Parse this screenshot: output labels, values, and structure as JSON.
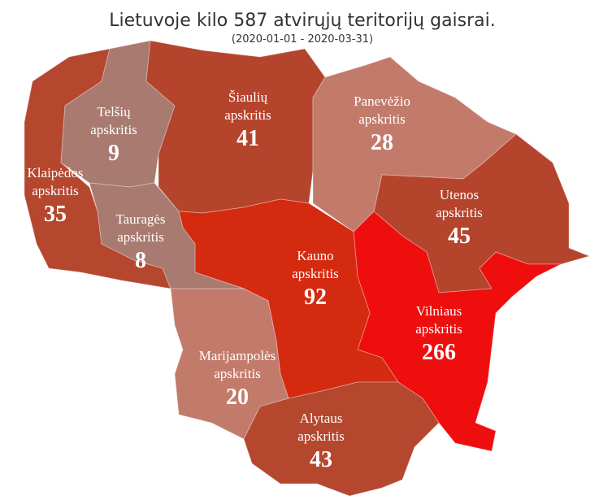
{
  "title": "Lietuvoje kilo 587 atvirųjų teritorijų gaisrai.",
  "subtitle": "(2020-01-01 - 2020-03-31)",
  "regions": [
    {
      "name": "Klaipėdos",
      "unit": "apskritis",
      "value": 35,
      "color": "#b5472f"
    },
    {
      "name": "Telšių",
      "unit": "apskritis",
      "value": 9,
      "color": "#a87a70"
    },
    {
      "name": "Šiaulių",
      "unit": "apskritis",
      "value": 41,
      "color": "#b5442d"
    },
    {
      "name": "Panevėžio",
      "unit": "apskritis",
      "value": 28,
      "color": "#c27b6b"
    },
    {
      "name": "Utenos",
      "unit": "apskritis",
      "value": 45,
      "color": "#b5442d"
    },
    {
      "name": "Vilniaus",
      "unit": "apskritis",
      "value": 266,
      "color": "#ee0e0e"
    },
    {
      "name": "Kauno",
      "unit": "apskritis",
      "value": 92,
      "color": "#d42a10"
    },
    {
      "name": "Tauragės",
      "unit": "apskritis",
      "value": 8,
      "color": "#a87a70"
    },
    {
      "name": "Marijampolės",
      "unit": "apskritis",
      "value": 20,
      "color": "#c27b6b"
    },
    {
      "name": "Alytaus",
      "unit": "apskritis",
      "value": 43,
      "color": "#b5472f"
    }
  ]
}
